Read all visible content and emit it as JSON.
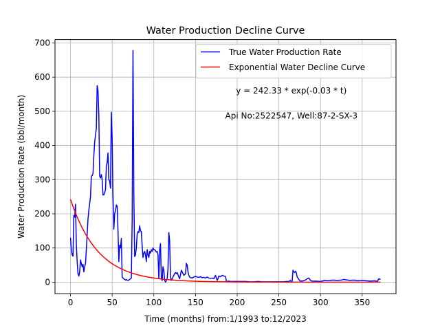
{
  "chart_data": {
    "type": "line",
    "title": "Water Production Decline Curve",
    "xlabel": "Time (months) from:1/1993 to:12/2023",
    "ylabel": "Water Production Rate (bbl/month)",
    "xlim": [
      -18.6,
      390.6
    ],
    "ylim": [
      -33.8,
      709.8
    ],
    "xticks": [
      0,
      50,
      100,
      150,
      200,
      250,
      300,
      350
    ],
    "yticks": [
      0,
      100,
      200,
      300,
      400,
      500,
      600,
      700
    ],
    "grid": true,
    "legend_position": "top-right",
    "annotations": [
      {
        "text": "y = 242.33 * exp(-0.03 * t)",
        "x": 265,
        "y": 560
      },
      {
        "text": "Api No:2522547, Well:87-2-SX-3",
        "x": 265,
        "y": 487
      }
    ],
    "series": [
      {
        "name": "True Water Production Rate",
        "color": "#0000ff",
        "points": [
          [
            0,
            130
          ],
          [
            1,
            95
          ],
          [
            2,
            80
          ],
          [
            3,
            76
          ],
          [
            4,
            195
          ],
          [
            5,
            190
          ],
          [
            6,
            228
          ],
          [
            7,
            110
          ],
          [
            8,
            60
          ],
          [
            9,
            25
          ],
          [
            10,
            18
          ],
          [
            11,
            30
          ],
          [
            12,
            65
          ],
          [
            13,
            55
          ],
          [
            14,
            45
          ],
          [
            15,
            52
          ],
          [
            16,
            30
          ],
          [
            17,
            45
          ],
          [
            18,
            55
          ],
          [
            19,
            95
          ],
          [
            20,
            140
          ],
          [
            21,
            185
          ],
          [
            22,
            210
          ],
          [
            23,
            230
          ],
          [
            24,
            250
          ],
          [
            25,
            310
          ],
          [
            26,
            312
          ],
          [
            27,
            318
          ],
          [
            28,
            370
          ],
          [
            29,
            410
          ],
          [
            30,
            430
          ],
          [
            31,
            450
          ],
          [
            32,
            575
          ],
          [
            33,
            560
          ],
          [
            34,
            490
          ],
          [
            35,
            310
          ],
          [
            36,
            305
          ],
          [
            37,
            315
          ],
          [
            38,
            300
          ],
          [
            39,
            255
          ],
          [
            40,
            255
          ],
          [
            41,
            262
          ],
          [
            42,
            270
          ],
          [
            43,
            340
          ],
          [
            44,
            350
          ],
          [
            45,
            378
          ],
          [
            46,
            300
          ],
          [
            47,
            296
          ],
          [
            48,
            275
          ],
          [
            49,
            497
          ],
          [
            50,
            420
          ],
          [
            51,
            250
          ],
          [
            52,
            155
          ],
          [
            53,
            200
          ],
          [
            54,
            210
          ],
          [
            55,
            226
          ],
          [
            56,
            222
          ],
          [
            57,
            150
          ],
          [
            58,
            60
          ],
          [
            59,
            108
          ],
          [
            60,
            100
          ],
          [
            61,
            128
          ],
          [
            62,
            15
          ],
          [
            63,
            12
          ],
          [
            64,
            10
          ],
          [
            65,
            8
          ],
          [
            66,
            6
          ],
          [
            67,
            8
          ],
          [
            68,
            6
          ],
          [
            69,
            5
          ],
          [
            70,
            6
          ],
          [
            71,
            8
          ],
          [
            72,
            10
          ],
          [
            73,
            12
          ],
          [
            74,
            180
          ],
          [
            75,
            678
          ],
          [
            76,
            260
          ],
          [
            77,
            75
          ],
          [
            78,
            80
          ],
          [
            79,
            100
          ],
          [
            80,
            140
          ],
          [
            81,
            148
          ],
          [
            82,
            145
          ],
          [
            83,
            165
          ],
          [
            84,
            150
          ],
          [
            85,
            148
          ],
          [
            86,
            105
          ],
          [
            87,
            72
          ],
          [
            88,
            85
          ],
          [
            89,
            90
          ],
          [
            90,
            80
          ],
          [
            91,
            60
          ],
          [
            92,
            95
          ],
          [
            93,
            80
          ],
          [
            94,
            72
          ],
          [
            95,
            90
          ],
          [
            96,
            85
          ],
          [
            97,
            95
          ],
          [
            98,
            90
          ],
          [
            99,
            100
          ],
          [
            100,
            95
          ],
          [
            101,
            95
          ],
          [
            102,
            92
          ],
          [
            103,
            88
          ],
          [
            104,
            90
          ],
          [
            105,
            80
          ],
          [
            106,
            10
          ],
          [
            107,
            95
          ],
          [
            108,
            113
          ],
          [
            109,
            10
          ],
          [
            110,
            5
          ],
          [
            111,
            45
          ],
          [
            112,
            35
          ],
          [
            113,
            5
          ],
          [
            114,
            0
          ],
          [
            115,
            5
          ],
          [
            116,
            10
          ],
          [
            117,
            40
          ],
          [
            118,
            145
          ],
          [
            119,
            120
          ],
          [
            120,
            15
          ],
          [
            121,
            5
          ],
          [
            122,
            10
          ],
          [
            123,
            15
          ],
          [
            124,
            20
          ],
          [
            125,
            25
          ],
          [
            126,
            28
          ],
          [
            127,
            25
          ],
          [
            128,
            28
          ],
          [
            129,
            22
          ],
          [
            130,
            15
          ],
          [
            131,
            10
          ],
          [
            132,
            22
          ],
          [
            133,
            35
          ],
          [
            134,
            30
          ],
          [
            135,
            25
          ],
          [
            136,
            20
          ],
          [
            137,
            22
          ],
          [
            138,
            25
          ],
          [
            139,
            55
          ],
          [
            140,
            50
          ],
          [
            141,
            30
          ],
          [
            142,
            20
          ],
          [
            143,
            15
          ],
          [
            144,
            13
          ],
          [
            146,
            12
          ],
          [
            148,
            15
          ],
          [
            150,
            17
          ],
          [
            152,
            15
          ],
          [
            154,
            14
          ],
          [
            156,
            16
          ],
          [
            158,
            13
          ],
          [
            160,
            14
          ],
          [
            162,
            12
          ],
          [
            164,
            15
          ],
          [
            166,
            12
          ],
          [
            168,
            11
          ],
          [
            170,
            12
          ],
          [
            172,
            10
          ],
          [
            174,
            20
          ],
          [
            175,
            12
          ],
          [
            176,
            5
          ],
          [
            177,
            10
          ],
          [
            178,
            18
          ],
          [
            180,
            16
          ],
          [
            182,
            20
          ],
          [
            184,
            18
          ],
          [
            186,
            17
          ],
          [
            187,
            3
          ],
          [
            188,
            2
          ],
          [
            190,
            3
          ],
          [
            192,
            2
          ],
          [
            195,
            2
          ],
          [
            200,
            2
          ],
          [
            205,
            2
          ],
          [
            210,
            2
          ],
          [
            215,
            1
          ],
          [
            220,
            1
          ],
          [
            225,
            2
          ],
          [
            230,
            1
          ],
          [
            235,
            1
          ],
          [
            240,
            1
          ],
          [
            245,
            1
          ],
          [
            250,
            1
          ],
          [
            255,
            1
          ],
          [
            260,
            2
          ],
          [
            262,
            2
          ],
          [
            264,
            5
          ],
          [
            265,
            0
          ],
          [
            266,
            3
          ],
          [
            267,
            35
          ],
          [
            268,
            30
          ],
          [
            269,
            28
          ],
          [
            270,
            32
          ],
          [
            271,
            28
          ],
          [
            272,
            15
          ],
          [
            273,
            12
          ],
          [
            274,
            8
          ],
          [
            275,
            5
          ],
          [
            276,
            3
          ],
          [
            278,
            3
          ],
          [
            280,
            5
          ],
          [
            282,
            6
          ],
          [
            284,
            10
          ],
          [
            286,
            12
          ],
          [
            288,
            5
          ],
          [
            290,
            3
          ],
          [
            295,
            3
          ],
          [
            300,
            2
          ],
          [
            305,
            5
          ],
          [
            310,
            4
          ],
          [
            315,
            6
          ],
          [
            320,
            5
          ],
          [
            325,
            6
          ],
          [
            328,
            8
          ],
          [
            330,
            7
          ],
          [
            335,
            5
          ],
          [
            340,
            6
          ],
          [
            345,
            4
          ],
          [
            350,
            5
          ],
          [
            355,
            4
          ],
          [
            360,
            3
          ],
          [
            365,
            4
          ],
          [
            368,
            2
          ],
          [
            370,
            10
          ],
          [
            372,
            8
          ]
        ]
      },
      {
        "name": "Exponential Water Decline Curve",
        "color": "#ff0000",
        "model": {
          "a": 242.33,
          "b": 0.03,
          "t_start": 0,
          "t_end": 372
        }
      }
    ]
  }
}
